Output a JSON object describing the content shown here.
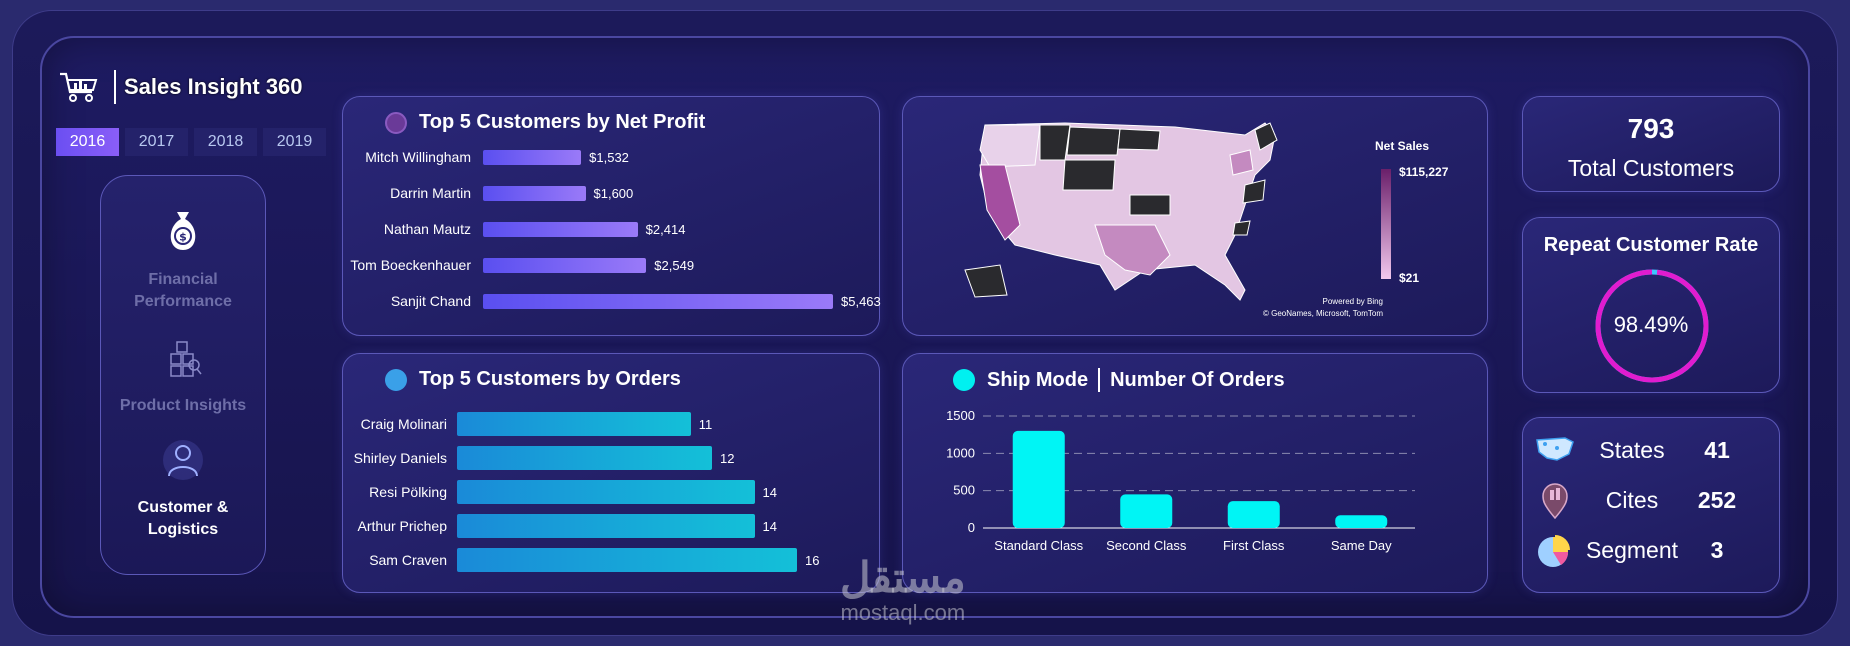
{
  "app": {
    "title": "Sales Insight 360"
  },
  "years": [
    "2016",
    "2017",
    "2018",
    "2019"
  ],
  "active_year": "2016",
  "nav": [
    {
      "label": "Financial\nPerformance",
      "icon": "money-bag-icon",
      "active": false
    },
    {
      "label": "Product Insights",
      "icon": "boxes-icon",
      "active": false
    },
    {
      "label": "Customer &\nLogistics",
      "icon": "customer-icon",
      "active": true
    }
  ],
  "profit_card": {
    "title": "Top 5 Customers by Net Profit",
    "dot_color": "#7a3fa8",
    "rows": [
      {
        "name": "Mitch Willingham",
        "value": 1532,
        "label": "$1,532"
      },
      {
        "name": "Darrin Martin",
        "value": 1600,
        "label": "$1,600"
      },
      {
        "name": "Nathan Mautz",
        "value": 2414,
        "label": "$2,414"
      },
      {
        "name": "Tom Boeckenhauer",
        "value": 2549,
        "label": "$2,549"
      },
      {
        "name": "Sanjit Chand",
        "value": 5463,
        "label": "$5,463"
      }
    ]
  },
  "orders_card": {
    "title": "Top 5 Customers by Orders",
    "dot_color": "#3aa0e8",
    "rows": [
      {
        "name": "Craig Molinari",
        "value": 11,
        "label": "11"
      },
      {
        "name": "Shirley Daniels",
        "value": 12,
        "label": "12"
      },
      {
        "name": "Resi Pölking",
        "value": 14,
        "label": "14"
      },
      {
        "name": "Arthur Prichep",
        "value": 14,
        "label": "14"
      },
      {
        "name": "Sam Craven",
        "value": 16,
        "label": "16"
      }
    ]
  },
  "map_card": {
    "legend_title": "Net Sales",
    "legend_max": "$115,227",
    "legend_min": "$21",
    "credit_1": "Powered by Bing",
    "credit_2": "© GeoNames, Microsoft, TomTom"
  },
  "ship_card": {
    "title_a": "Ship Mode",
    "title_b": "Number Of Orders",
    "dot_color": "#00f0f0"
  },
  "chart_data": {
    "type": "bar",
    "categories": [
      "Standard Class",
      "Second Class",
      "First Class",
      "Same Day"
    ],
    "values": [
      1300,
      450,
      360,
      170
    ],
    "ylim": [
      0,
      1500
    ],
    "yticks": [
      "0",
      "500",
      "1000",
      "1500"
    ],
    "grid": true
  },
  "kpis": {
    "total_customers": {
      "value": "793",
      "label": "Total Customers"
    },
    "repeat_rate": {
      "title": "Repeat Customer Rate",
      "value": "98.49%",
      "fraction": 0.9849
    },
    "stats": [
      {
        "icon": "us-map-icon",
        "name": "States",
        "value": "41"
      },
      {
        "icon": "city-pin-icon",
        "name": "Cites",
        "value": "252"
      },
      {
        "icon": "pie-chart-icon",
        "name": "Segment",
        "value": "3"
      }
    ]
  },
  "watermark": {
    "arabic": "مستقل",
    "latin": "mostaql.com"
  }
}
